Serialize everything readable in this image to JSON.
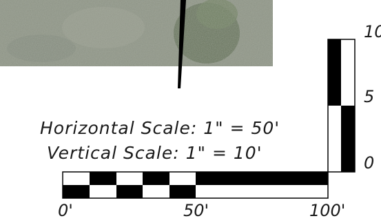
{
  "map_photo": {
    "description_icon": "aerial-photo"
  },
  "north_arrow": {
    "icon": "north-arrow-icon"
  },
  "notes": {
    "horizontal_scale": "Horizontal Scale: 1\" = 50'",
    "vertical_scale": "Vertical Scale: 1\" = 10'"
  },
  "horizontal_bar": {
    "labels": [
      "0'",
      "50'",
      "100'"
    ],
    "max_value": 100
  },
  "vertical_bar": {
    "labels": [
      "10",
      "5",
      "0"
    ],
    "max_value": 10
  },
  "colors": {
    "bar_fill": "#000000",
    "text": "#1a1a1a"
  }
}
